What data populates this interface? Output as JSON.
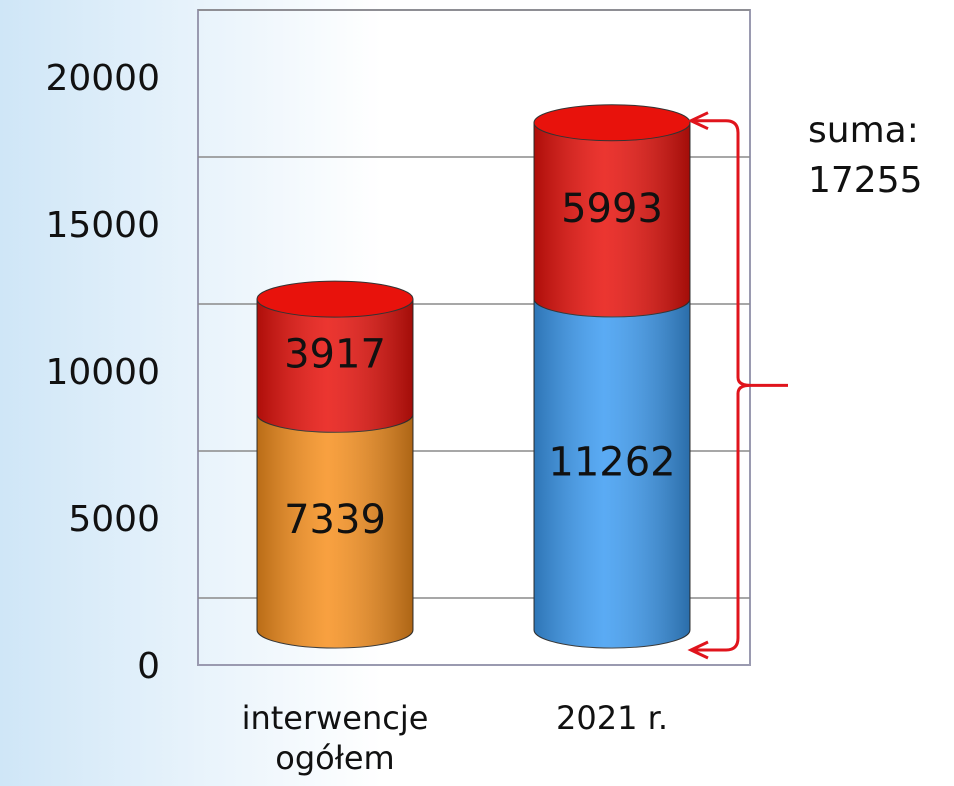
{
  "chart_data": {
    "type": "stacked-cylinder",
    "categories": [
      "interwencje\nogółem",
      "2021 r."
    ],
    "series": [
      {
        "colors": [
          "#f7901e",
          "#3d9cf2"
        ],
        "values": [
          7339,
          11262
        ]
      },
      {
        "color": "#e8120c",
        "values": [
          3917,
          5993
        ]
      }
    ],
    "ylim": [
      0,
      20000
    ],
    "yticks": [
      0,
      5000,
      10000,
      15000,
      20000
    ],
    "grid": true,
    "annotation": {
      "text": "suma:",
      "value": 17255
    }
  }
}
